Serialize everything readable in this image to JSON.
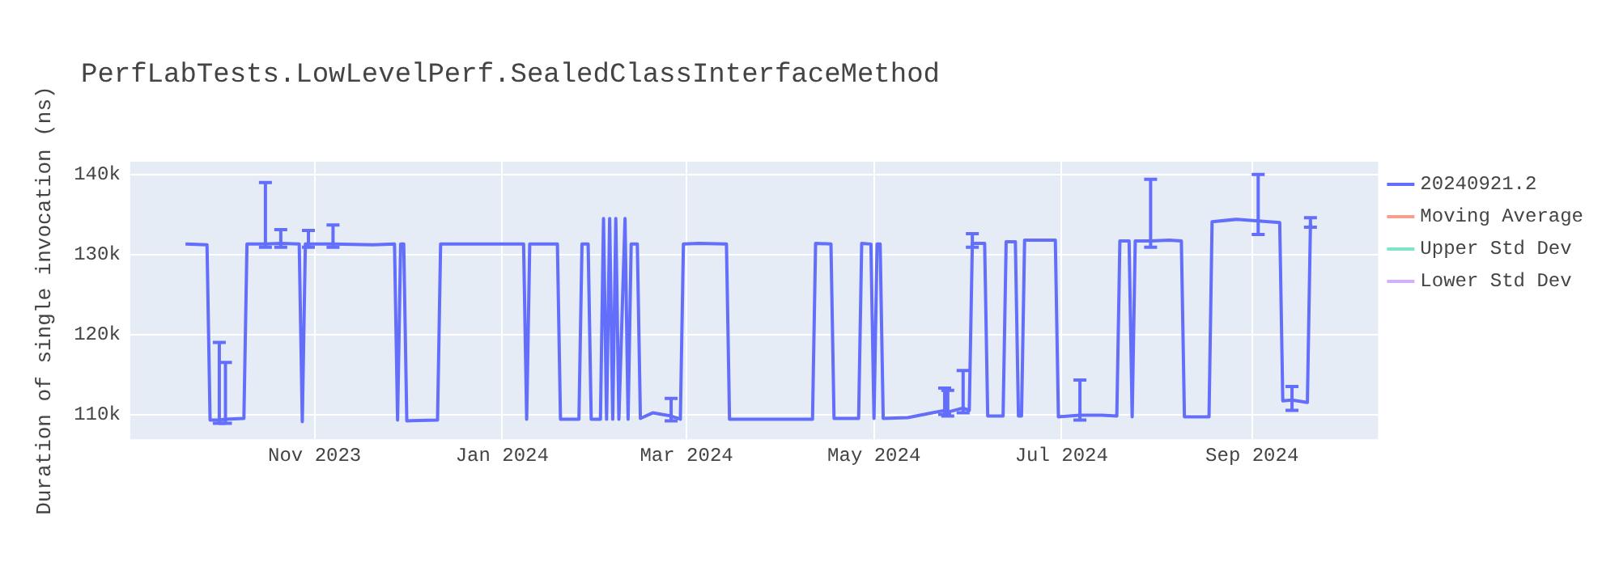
{
  "chart_data": {
    "type": "line",
    "title": "PerfLabTests.LowLevelPerf.SealedClassInterfaceMethod",
    "ylabel": "Duration of single invocation (ns)",
    "xlim": [
      "2023-09-02",
      "2024-10-12"
    ],
    "xticks": [
      {
        "value": "2023-11-01",
        "label": "Nov 2023"
      },
      {
        "value": "2024-01-01",
        "label": "Jan 2024"
      },
      {
        "value": "2024-03-01",
        "label": "Mar 2024"
      },
      {
        "value": "2024-05-01",
        "label": "May 2024"
      },
      {
        "value": "2024-07-01",
        "label": "Jul 2024"
      },
      {
        "value": "2024-09-01",
        "label": "Sep 2024"
      }
    ],
    "ylim": [
      106900,
      141600
    ],
    "yticks": [
      {
        "value": 110000,
        "label": "110k"
      },
      {
        "value": 120000,
        "label": "120k"
      },
      {
        "value": 130000,
        "label": "130k"
      },
      {
        "value": 140000,
        "label": "140k"
      }
    ],
    "grid": true,
    "legend": "top right",
    "series": [
      {
        "name": "20240921.2",
        "color": "#636efa",
        "x": [
          "2023-09-20",
          "2023-09-27",
          "2023-09-28",
          "2023-10-01",
          "2023-10-03",
          "2023-10-09",
          "2023-10-10",
          "2023-10-16",
          "2023-10-21",
          "2023-10-27",
          "2023-10-28",
          "2023-10-29",
          "2023-10-30",
          "2023-11-07",
          "2023-11-20",
          "2023-11-27",
          "2023-11-28",
          "2023-11-29",
          "2023-11-30",
          "2023-12-01",
          "2023-12-11",
          "2023-12-12",
          "2023-12-25",
          "2024-01-08",
          "2024-01-09",
          "2024-01-10",
          "2024-01-19",
          "2024-01-20",
          "2024-01-26",
          "2024-01-27",
          "2024-01-29",
          "2024-01-30",
          "2024-02-02",
          "2024-02-03",
          "2024-02-04",
          "2024-02-05",
          "2024-02-06",
          "2024-02-07",
          "2024-02-08",
          "2024-02-10",
          "2024-02-11",
          "2024-02-12",
          "2024-02-14",
          "2024-02-15",
          "2024-02-19",
          "2024-02-25",
          "2024-02-28",
          "2024-02-29",
          "2024-03-05",
          "2024-03-14",
          "2024-03-15",
          "2024-03-27",
          "2024-04-11",
          "2024-04-12",
          "2024-04-17",
          "2024-04-18",
          "2024-04-26",
          "2024-04-27",
          "2024-04-30",
          "2024-05-01",
          "2024-05-02",
          "2024-05-03",
          "2024-05-04",
          "2024-05-12",
          "2024-05-20",
          "2024-05-24",
          "2024-05-25",
          "2024-05-30",
          "2024-06-01",
          "2024-06-02",
          "2024-06-06",
          "2024-06-07",
          "2024-06-12",
          "2024-06-13",
          "2024-06-16",
          "2024-06-17",
          "2024-06-18",
          "2024-06-19",
          "2024-06-29",
          "2024-06-30",
          "2024-07-07",
          "2024-07-14",
          "2024-07-19",
          "2024-07-20",
          "2024-07-23",
          "2024-07-24",
          "2024-07-25",
          "2024-07-30",
          "2024-08-05",
          "2024-08-09",
          "2024-08-10",
          "2024-08-18",
          "2024-08-19",
          "2024-08-27",
          "2024-09-03",
          "2024-09-10",
          "2024-09-11",
          "2024-09-14",
          "2024-09-19",
          "2024-09-20"
        ],
        "values": [
          131300,
          131200,
          109300,
          109300,
          109400,
          109500,
          131300,
          131300,
          131400,
          131300,
          109100,
          131300,
          131300,
          131300,
          131200,
          131300,
          109300,
          131300,
          131300,
          109200,
          109300,
          131300,
          131300,
          131300,
          109400,
          131300,
          131300,
          109400,
          109400,
          131300,
          131300,
          109400,
          109400,
          134500,
          109400,
          134500,
          109400,
          134500,
          109400,
          134500,
          109400,
          131300,
          131300,
          109500,
          110200,
          109800,
          109400,
          131300,
          131400,
          131300,
          109400,
          109400,
          109400,
          131400,
          131300,
          109500,
          109500,
          131400,
          131300,
          109500,
          131300,
          131300,
          109500,
          109600,
          110200,
          110500,
          110300,
          110800,
          110500,
          131400,
          131400,
          109800,
          109800,
          131600,
          131600,
          109800,
          109800,
          131800,
          131800,
          109700,
          109900,
          109900,
          109800,
          131700,
          131700,
          109700,
          131700,
          131700,
          131800,
          131700,
          109700,
          109700,
          134100,
          134400,
          134200,
          134000,
          111700,
          111800,
          111500,
          133800
        ],
        "errors": [
          null,
          null,
          null,
          [
            108900,
            119000
          ],
          [
            108900,
            116500
          ],
          null,
          null,
          [
            130900,
            139000
          ],
          [
            130900,
            133100
          ],
          null,
          null,
          null,
          [
            130900,
            133000
          ],
          [
            130900,
            133700
          ],
          null,
          null,
          null,
          null,
          null,
          null,
          null,
          null,
          null,
          null,
          null,
          null,
          null,
          null,
          null,
          null,
          null,
          null,
          null,
          null,
          null,
          null,
          null,
          null,
          null,
          null,
          null,
          null,
          null,
          null,
          null,
          [
            109200,
            112000
          ],
          null,
          null,
          null,
          null,
          null,
          null,
          null,
          null,
          null,
          null,
          null,
          null,
          null,
          null,
          null,
          null,
          null,
          null,
          null,
          [
            110000,
            113300
          ],
          [
            109800,
            113000
          ],
          [
            110200,
            115500
          ],
          null,
          [
            130900,
            132600
          ],
          null,
          null,
          null,
          null,
          null,
          null,
          null,
          null,
          null,
          null,
          [
            109300,
            114300
          ],
          null,
          null,
          null,
          null,
          null,
          null,
          [
            130900,
            139400
          ],
          null,
          null,
          null,
          null,
          null,
          null,
          [
            132500,
            140000
          ],
          null,
          null,
          [
            110500,
            113500
          ],
          null,
          [
            133400,
            134600
          ]
        ]
      },
      {
        "name": "Moving Average",
        "color": "#f4a08e"
      },
      {
        "name": "Upper Std Dev",
        "color": "#7fe5ca"
      },
      {
        "name": "Lower Std Dev",
        "color": "#d4b0fc"
      }
    ]
  }
}
